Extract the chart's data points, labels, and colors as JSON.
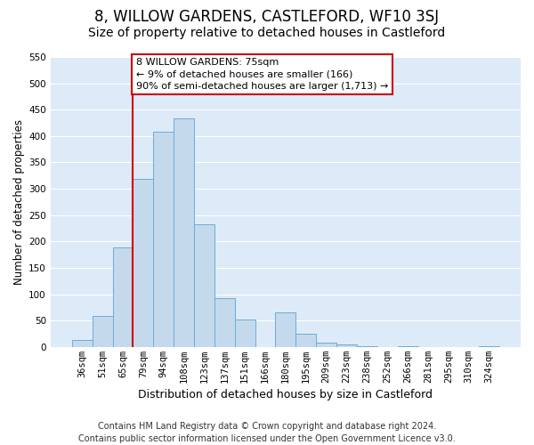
{
  "title": "8, WILLOW GARDENS, CASTLEFORD, WF10 3SJ",
  "subtitle": "Size of property relative to detached houses in Castleford",
  "xlabel": "Distribution of detached houses by size in Castleford",
  "ylabel": "Number of detached properties",
  "bar_labels": [
    "36sqm",
    "51sqm",
    "65sqm",
    "79sqm",
    "94sqm",
    "108sqm",
    "123sqm",
    "137sqm",
    "151sqm",
    "166sqm",
    "180sqm",
    "195sqm",
    "209sqm",
    "223sqm",
    "238sqm",
    "252sqm",
    "266sqm",
    "281sqm",
    "295sqm",
    "310sqm",
    "324sqm"
  ],
  "bar_values": [
    13,
    59,
    188,
    318,
    409,
    434,
    232,
    93,
    52,
    0,
    65,
    25,
    8,
    5,
    2,
    0,
    2,
    0,
    0,
    0,
    2
  ],
  "bar_color": "#c5d9ed",
  "bar_edge_color": "#6aadd5",
  "vline_x_idx": 3,
  "vline_color": "#cc0000",
  "annotation_line1": "8 WILLOW GARDENS: 75sqm",
  "annotation_line2": "← 9% of detached houses are smaller (166)",
  "annotation_line3": "90% of semi-detached houses are larger (1,713) →",
  "annotation_box_edge": "#cc0000",
  "annotation_box_face": "#ffffff",
  "ylim": [
    0,
    550
  ],
  "yticks": [
    0,
    50,
    100,
    150,
    200,
    250,
    300,
    350,
    400,
    450,
    500,
    550
  ],
  "footnote": "Contains HM Land Registry data © Crown copyright and database right 2024.\nContains public sector information licensed under the Open Government Licence v3.0.",
  "background_color": "#ffffff",
  "plot_bg_color": "#ddeaf7",
  "grid_color": "#ffffff",
  "title_fontsize": 12,
  "subtitle_fontsize": 10,
  "xlabel_fontsize": 9,
  "ylabel_fontsize": 8.5,
  "footnote_fontsize": 7,
  "tick_fontsize": 7.5,
  "annot_fontsize": 8
}
